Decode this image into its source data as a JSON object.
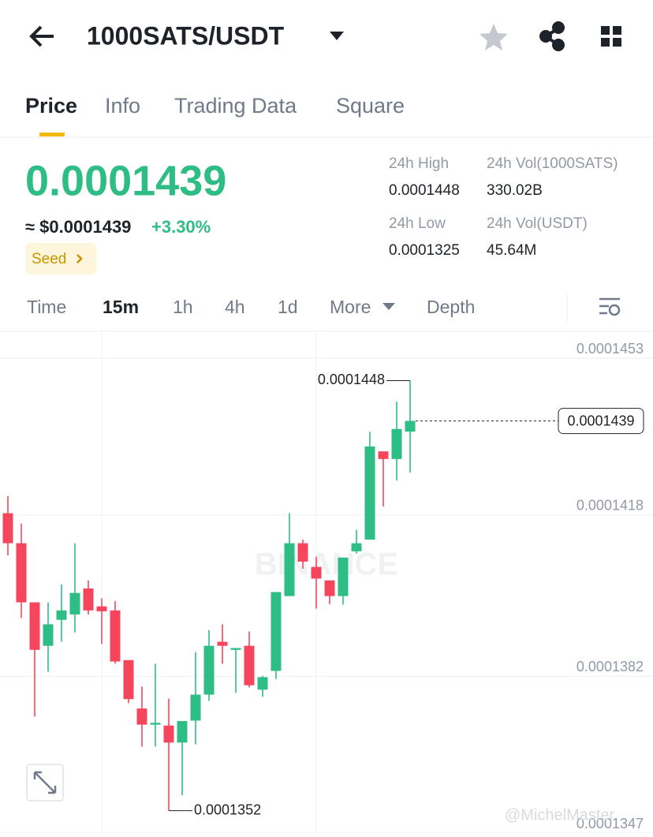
{
  "header": {
    "title": "1000SATS/USDT"
  },
  "tabs": [
    "Price",
    "Info",
    "Trading Data",
    "Square"
  ],
  "price": {
    "last": "0.0001439",
    "usd": "≈ $0.0001439",
    "change": "+3.30%",
    "tag": "Seed"
  },
  "stats": [
    {
      "label": "24h High",
      "value": "0.0001448"
    },
    {
      "label": "24h Vol(1000SATS)",
      "value": "330.02B"
    },
    {
      "label": "24h Low",
      "value": "0.0001325"
    },
    {
      "label": "24h Vol(USDT)",
      "value": "45.64M"
    }
  ],
  "timeframes": [
    "Time",
    "15m",
    "1h",
    "4h",
    "1d",
    "More",
    "Depth"
  ],
  "chart_data": {
    "type": "candlestick",
    "up_color": "#2ebd85",
    "down_color": "#f6465d",
    "ylim": [
      0.0001347,
      0.0001459
    ],
    "yticks": [
      0.0001453,
      0.0001418,
      0.0001382,
      0.0001347
    ],
    "grid": true,
    "open": [
      0.00014184,
      0.00014117,
      0.00013985,
      0.00013888,
      0.00013946,
      0.00013958,
      0.00014016,
      0.00013976,
      0.00013967,
      0.00013856,
      0.00013748,
      0.00013712,
      0.0001371,
      0.00013672,
      0.00013721,
      0.00013779,
      0.00013897,
      0.00013879,
      0.00013888,
      0.0001379,
      0.00013832,
      0.00013999,
      0.00014117,
      0.00014064,
      0.00014034,
      0.00013999,
      0.00014099,
      0.00014125,
      0.00014322,
      0.00014305,
      0.00014366
    ],
    "high": [
      0.00014222,
      0.00014161,
      0.00013985,
      0.00013985,
      0.00014025,
      0.00014117,
      0.00014034,
      0.00013994,
      0.00013988,
      0.00013856,
      0.00013797,
      0.00013848,
      0.0001377,
      0.0001372,
      0.00013874,
      0.00013923,
      0.00013936,
      0.00013883,
      0.0001392,
      0.00013821,
      0.00014008,
      0.00014184,
      0.00014125,
      0.00014087,
      0.00014034,
      0.00014085,
      0.00014147,
      0.00014366,
      0.00014322,
      0.00014433,
      0.0001448
    ],
    "low": [
      0.0001409,
      0.0001395,
      0.0001373,
      0.0001383,
      0.00013897,
      0.00013918,
      0.00013958,
      0.00013892,
      0.00013848,
      0.0001376,
      0.00013663,
      0.00013663,
      0.0001352,
      0.00013554,
      0.00013668,
      0.00013765,
      0.00013848,
      0.00013783,
      0.00013795,
      0.00013774,
      0.00013814,
      0.00013999,
      0.0001406,
      0.00013971,
      0.00013981,
      0.0001398,
      0.00014094,
      0.00014125,
      0.00014199,
      0.00014257,
      0.00014275
    ],
    "close": [
      0.00014117,
      0.00013985,
      0.00013879,
      0.00013936,
      0.00013967,
      0.00014006,
      0.00013967,
      0.00013965,
      0.00013853,
      0.00013769,
      0.00013712,
      0.00013716,
      0.00013672,
      0.0001372,
      0.00013779,
      0.00013888,
      0.00013888,
      0.00013883,
      0.000138,
      0.00013818,
      0.00014008,
      0.00014117,
      0.00014076,
      0.00014038,
      0.00013999,
      0.00014085,
      0.00014117,
      0.00014333,
      0.00014305,
      0.00014372,
      0.0001439
    ],
    "annotations": {
      "high": "0.0001448",
      "low": "0.0001352",
      "last": "0.0001439"
    },
    "watermark": "BINANCE",
    "credit": "@MichelMaster"
  }
}
